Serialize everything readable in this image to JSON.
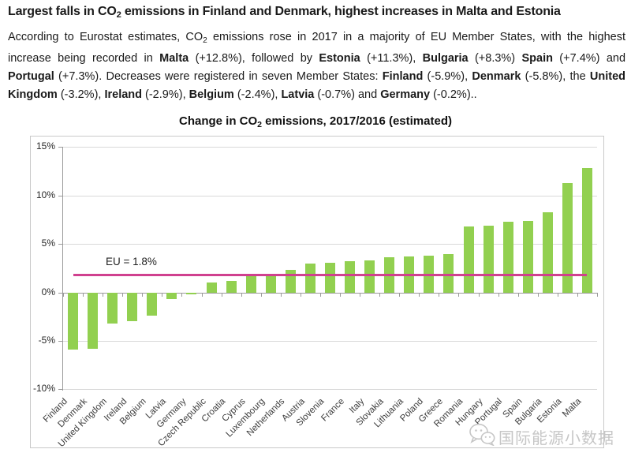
{
  "header": {
    "heading_segments": [
      {
        "t": "Largest falls in CO"
      },
      {
        "t": "2",
        "sub": true
      },
      {
        "t": " emissions in Finland and Denmark, highest increases in Malta and Estonia"
      }
    ],
    "paragraph_segments": [
      {
        "t": "According to Eurostat estimates, CO"
      },
      {
        "t": "2",
        "sub": true
      },
      {
        "t": " emissions rose in 2017 in a majority of EU Member States, with the highest increase being recorded in "
      },
      {
        "t": "Malta",
        "b": true
      },
      {
        "t": " (+12.8%), followed by "
      },
      {
        "t": "Estonia",
        "b": true
      },
      {
        "t": " (+11.3%), "
      },
      {
        "t": "Bulgaria",
        "b": true
      },
      {
        "t": " (+8.3%) "
      },
      {
        "t": "Spain",
        "b": true
      },
      {
        "t": " (+7.4%) and "
      },
      {
        "t": "Portugal",
        "b": true
      },
      {
        "t": " (+7.3%). Decreases were registered in seven Member States: "
      },
      {
        "t": "Finland",
        "b": true
      },
      {
        "t": " (-5.9%), "
      },
      {
        "t": "Denmark",
        "b": true
      },
      {
        "t": " (-5.8%), the "
      },
      {
        "t": "United Kingdom",
        "b": true
      },
      {
        "t": " (-3.2%), "
      },
      {
        "t": "Ireland",
        "b": true
      },
      {
        "t": " (-2.9%), "
      },
      {
        "t": "Belgium",
        "b": true
      },
      {
        "t": " (-2.4%), "
      },
      {
        "t": "Latvia",
        "b": true
      },
      {
        "t": " (-0.7%) and "
      },
      {
        "t": "Germany",
        "b": true
      },
      {
        "t": " (-0.2%).."
      }
    ]
  },
  "chart": {
    "title_segments": [
      {
        "t": "Change in CO"
      },
      {
        "t": "2",
        "sub": true
      },
      {
        "t": " emissions, 2017/2016 (estimated)"
      }
    ]
  },
  "chart_data": {
    "type": "bar",
    "title": "Change in CO2 emissions, 2017/2016 (estimated)",
    "categories": [
      "Finland",
      "Denmark",
      "United Kingdom",
      "Ireland",
      "Belgium",
      "Latvia",
      "Germany",
      "Czech Republic",
      "Croatia",
      "Cyprus",
      "Luxembourg",
      "Netherlands",
      "Austria",
      "Slovenia",
      "France",
      "Italy",
      "Slovakia",
      "Lithuania",
      "Poland",
      "Greece",
      "Romania",
      "Hungary",
      "Portugal",
      "Spain",
      "Bulgaria",
      "Estonia",
      "Malta"
    ],
    "values": [
      -5.9,
      -5.8,
      -3.2,
      -2.9,
      -2.4,
      -0.7,
      -0.2,
      1.0,
      1.2,
      1.7,
      1.7,
      2.3,
      3.0,
      3.1,
      3.2,
      3.3,
      3.6,
      3.7,
      3.8,
      4.0,
      6.8,
      6.9,
      7.3,
      7.4,
      8.3,
      11.3,
      12.8
    ],
    "xlabel": "",
    "ylabel": "",
    "ylim": [
      -10,
      15
    ],
    "yticks": [
      {
        "label": "15%",
        "value": 15
      },
      {
        "label": "10%",
        "value": 10
      },
      {
        "label": "5%",
        "value": 5
      },
      {
        "label": "0%",
        "value": 0
      },
      {
        "label": "-5%",
        "value": -5
      },
      {
        "label": "-10%",
        "value": -10
      }
    ],
    "grid": true,
    "legend": "none",
    "bar_color": "#92D050",
    "reference_line": {
      "label": "EU = 1.8%",
      "value": 1.8,
      "color": "#D0408F"
    }
  },
  "watermark": {
    "icon": "wechat-chat-bubbles-icon",
    "text": "国际能源小数据"
  }
}
